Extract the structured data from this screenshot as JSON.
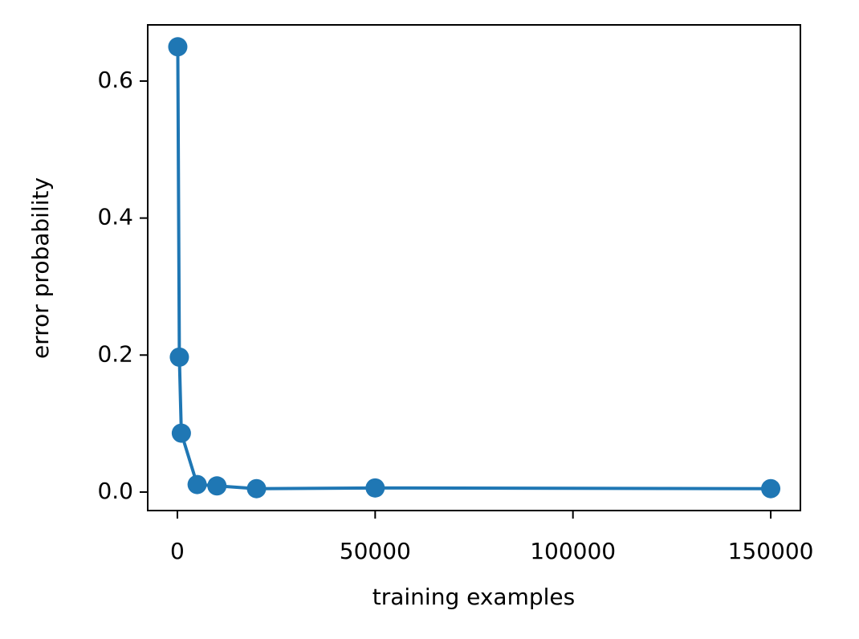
{
  "chart_data": {
    "type": "line",
    "x_label": "training examples",
    "y_label": "error probability",
    "series": [
      {
        "color": "#1f77b4",
        "x": [
          100,
          500,
          1000,
          5000,
          10000,
          20000,
          50000,
          150000
        ],
        "values": [
          0.65,
          0.197,
          0.086,
          0.011,
          0.009,
          0.005,
          0.006,
          0.005
        ]
      }
    ],
    "xlim": [
      -7500,
      157500
    ],
    "xticks": [
      0,
      50000,
      100000,
      150000
    ],
    "ylim": [
      -0.027,
      0.682
    ],
    "yticks": [
      {
        "value": 0,
        "label": "0.0"
      },
      0.2,
      0.4,
      0.6
    ],
    "grid": false
  }
}
